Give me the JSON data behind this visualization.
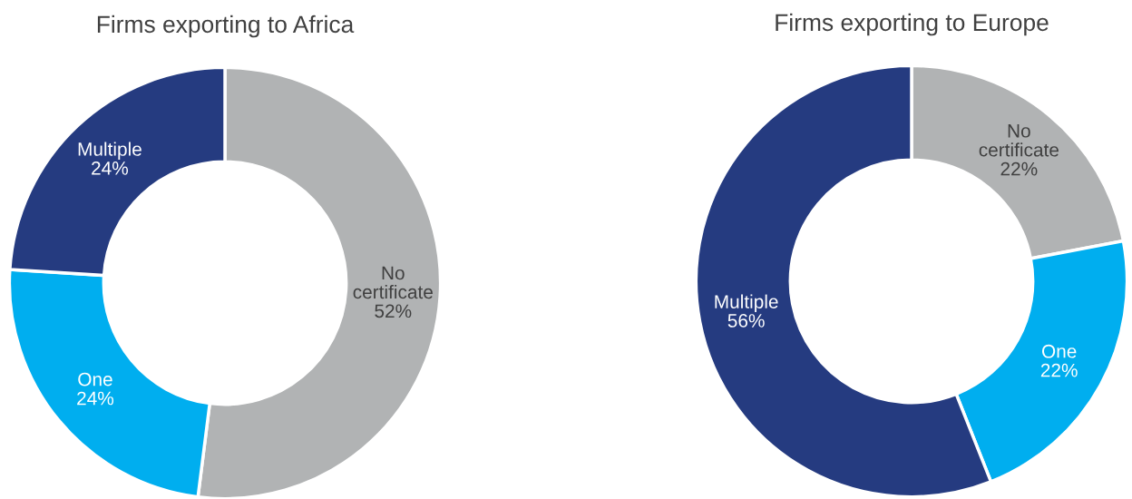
{
  "chart_data": [
    {
      "type": "donut",
      "title": "Firms exporting to Africa",
      "categories": [
        "No certificate",
        "One",
        "Multiple"
      ],
      "values": [
        52,
        24,
        24
      ],
      "value_labels": [
        "52%",
        "24%",
        "24%"
      ],
      "colors": [
        "#b1b3b4",
        "#00aeef",
        "#253b80"
      ],
      "legend": false
    },
    {
      "type": "donut",
      "title": "Firms exporting to Europe",
      "categories": [
        "No certificate",
        "One",
        "Multiple"
      ],
      "values": [
        22,
        22,
        56
      ],
      "value_labels": [
        "22%",
        "22%",
        "56%"
      ],
      "colors": [
        "#b1b3b4",
        "#00aeef",
        "#253b80"
      ],
      "legend": false
    }
  ]
}
